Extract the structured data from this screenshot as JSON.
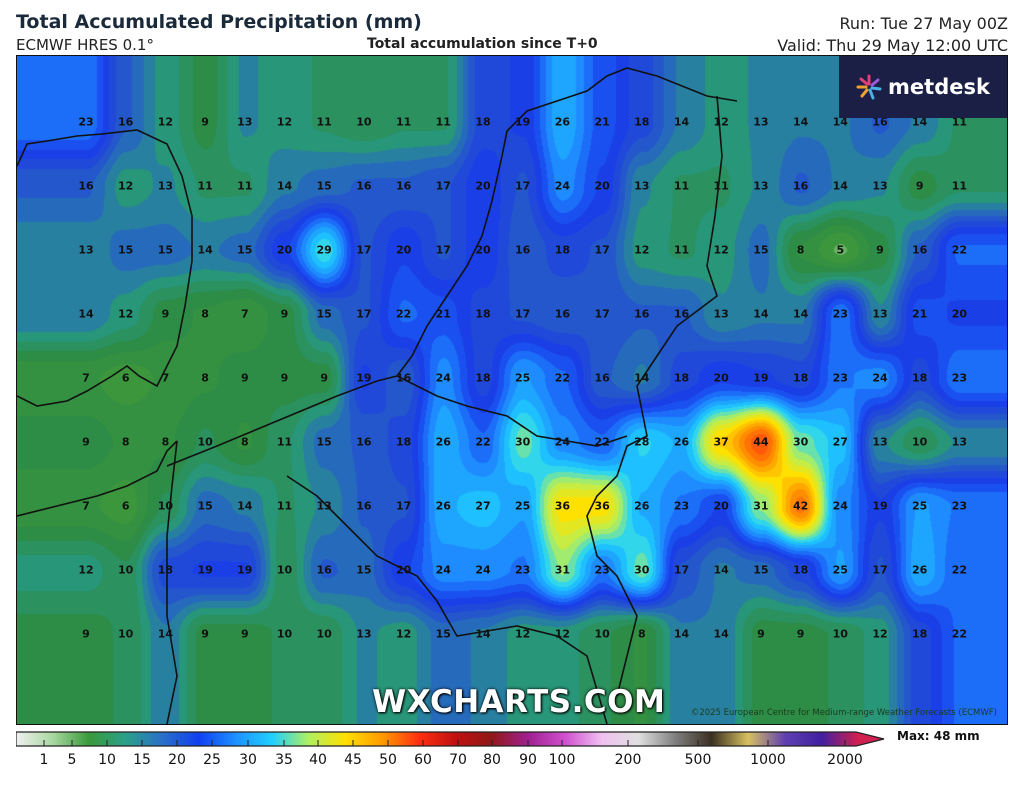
{
  "header": {
    "title": "Total Accumulated Precipitation (mm)",
    "model": "ECMWF HRES 0.1°",
    "subtitle": "Total accumulation since T+0",
    "run": "Run: Tue 27 May 00Z",
    "valid": "Valid: Thu 29 May 12:00 UTC"
  },
  "logo": {
    "name": "metdesk",
    "icon": "metdesk-starburst-icon",
    "colors": [
      "#e0407a",
      "#9a5ad8",
      "#4ab0e8",
      "#f0a030"
    ]
  },
  "watermark": "WXCHARTS.COM",
  "copyright": "©2025 European Centre for Medium-range Weather Forecasts (ECMWF)",
  "grid_values": [
    [
      23,
      16,
      12,
      9,
      13,
      12,
      11,
      10,
      11,
      11,
      18,
      19,
      26,
      21,
      18,
      14,
      12,
      13,
      14,
      14,
      16,
      14,
      11
    ],
    [
      16,
      12,
      13,
      11,
      11,
      14,
      15,
      16,
      16,
      17,
      20,
      17,
      24,
      20,
      13,
      11,
      11,
      13,
      16,
      14,
      13,
      9,
      11
    ],
    [
      13,
      15,
      15,
      14,
      15,
      20,
      29,
      17,
      20,
      17,
      20,
      16,
      18,
      17,
      12,
      11,
      12,
      15,
      8,
      5,
      9,
      16,
      22
    ],
    [
      14,
      12,
      9,
      8,
      7,
      9,
      15,
      17,
      22,
      21,
      18,
      17,
      16,
      17,
      16,
      16,
      13,
      14,
      14,
      23,
      13,
      21,
      20
    ],
    [
      7,
      6,
      7,
      8,
      9,
      9,
      9,
      19,
      16,
      24,
      18,
      25,
      22,
      16,
      14,
      18,
      20,
      19,
      18,
      23,
      24,
      18,
      23
    ],
    [
      9,
      8,
      8,
      10,
      8,
      11,
      15,
      16,
      18,
      26,
      22,
      30,
      24,
      22,
      28,
      26,
      37,
      44,
      30,
      27,
      13,
      10,
      13
    ],
    [
      7,
      6,
      10,
      15,
      14,
      11,
      13,
      16,
      17,
      26,
      27,
      25,
      36,
      36,
      26,
      23,
      20,
      31,
      42,
      24,
      19,
      25,
      23
    ],
    [
      12,
      10,
      18,
      19,
      19,
      10,
      16,
      15,
      20,
      24,
      24,
      23,
      31,
      23,
      30,
      17,
      14,
      15,
      18,
      25,
      17,
      26,
      22
    ],
    [
      9,
      10,
      14,
      9,
      9,
      10,
      10,
      13,
      12,
      15,
      14,
      12,
      12,
      10,
      8,
      14,
      14,
      9,
      9,
      10,
      12,
      18,
      22
    ]
  ],
  "colorbar": {
    "unit": "mm",
    "ticks": [
      "1",
      "5",
      "10",
      "15",
      "20",
      "25",
      "30",
      "35",
      "40",
      "45",
      "50",
      "60",
      "70",
      "80",
      "90",
      "100",
      "200",
      "500",
      "1000",
      "2000"
    ],
    "max_label": "Max: 48 mm",
    "colors": [
      "#f0f0f0",
      "#a8d8a0",
      "#3a9a3a",
      "#2aa08a",
      "#2a70c8",
      "#1040f0",
      "#1e90ff",
      "#20d0ff",
      "#b0f060",
      "#ffe000",
      "#ff9a00",
      "#ff3010",
      "#c01010",
      "#901818",
      "#a02090",
      "#d050d0",
      "#f0c0f0",
      "#e0e0e0",
      "#808080",
      "#3a3020",
      "#d8c060",
      "#6040b0",
      "#4020a0",
      "#d02050"
    ]
  }
}
